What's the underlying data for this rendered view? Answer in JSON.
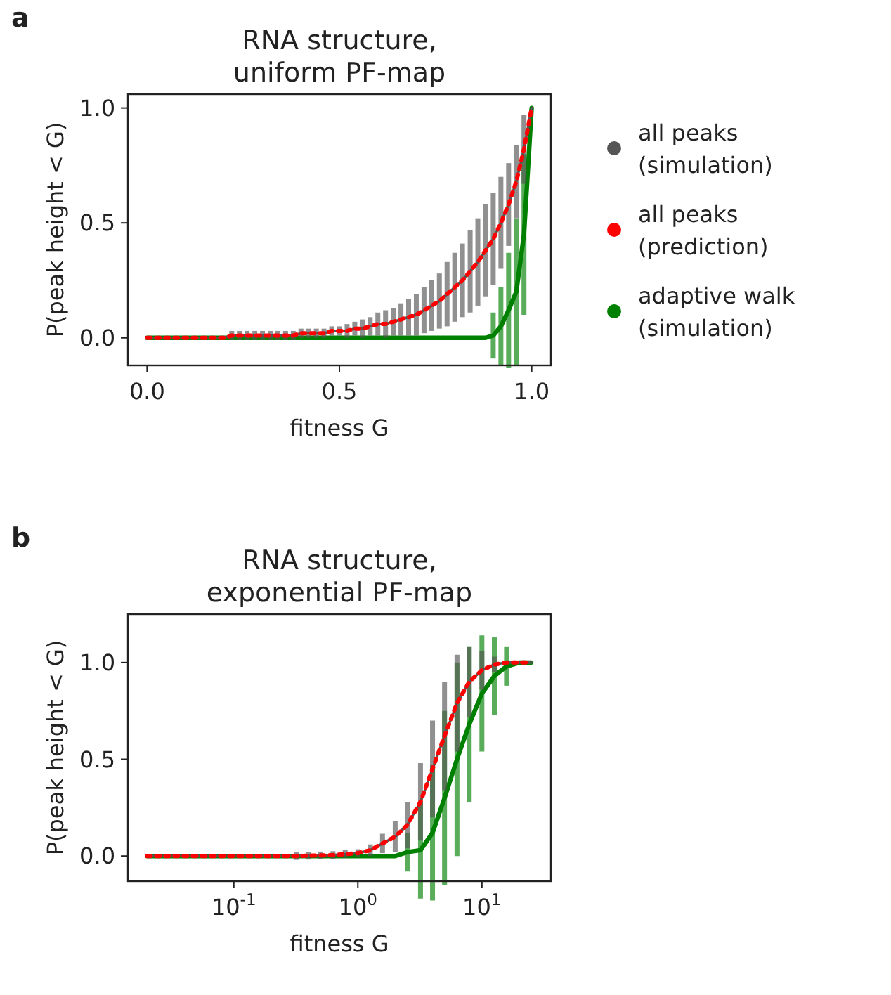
{
  "chart_data": [
    {
      "type": "line",
      "title": "RNA structure,\nuniform PF-map",
      "xlabel": "fitness G",
      "ylabel": "P(peak height < G)",
      "annotations": [
        "a"
      ],
      "legend": "right",
      "grid": false,
      "x": [
        0,
        0.02,
        0.04,
        0.06,
        0.08,
        0.1,
        0.12,
        0.14,
        0.16,
        0.18,
        0.2,
        0.22,
        0.24,
        0.26,
        0.28,
        0.3,
        0.32,
        0.34,
        0.36,
        0.38,
        0.4,
        0.42,
        0.44,
        0.46,
        0.48,
        0.5,
        0.52,
        0.54,
        0.56,
        0.58,
        0.6,
        0.62,
        0.64,
        0.66,
        0.68,
        0.7,
        0.72,
        0.74,
        0.76,
        0.78,
        0.8,
        0.82,
        0.84,
        0.86,
        0.88,
        0.9,
        0.92,
        0.94,
        0.96,
        0.98,
        1.0
      ],
      "xlim": [
        -0.05,
        1.05
      ],
      "ylim": [
        -0.12,
        1.06
      ],
      "xticks": [
        {
          "value": 0,
          "label": "0.0"
        },
        {
          "value": 0.5,
          "label": "0.5"
        },
        {
          "value": 1,
          "label": "1.0"
        }
      ],
      "yticks": [
        {
          "value": 0,
          "label": "0.0"
        },
        {
          "value": 0.5,
          "label": "0.5"
        },
        {
          "value": 1,
          "label": "1.0"
        }
      ],
      "series": [
        {
          "name": "all peaks\n(simulation)",
          "color": "#555555",
          "values": [
            0,
            0,
            0,
            0,
            0,
            0,
            0,
            0,
            0,
            0,
            0,
            0.01,
            0.01,
            0.01,
            0.01,
            0.01,
            0.01,
            0.01,
            0.01,
            0.01,
            0.02,
            0.02,
            0.02,
            0.02,
            0.03,
            0.03,
            0.03,
            0.04,
            0.04,
            0.05,
            0.06,
            0.06,
            0.07,
            0.08,
            0.09,
            0.1,
            0.12,
            0.14,
            0.16,
            0.19,
            0.22,
            0.25,
            0.29,
            0.33,
            0.38,
            0.43,
            0.5,
            0.58,
            0.68,
            0.82,
            1.0
          ],
          "errors": [
            null,
            null,
            null,
            null,
            null,
            null,
            null,
            null,
            null,
            null,
            null,
            0.02,
            0.02,
            0.02,
            0.02,
            0.02,
            0.02,
            0.02,
            0.02,
            0.02,
            0.02,
            0.02,
            0.02,
            0.02,
            0.02,
            0.02,
            0.03,
            0.03,
            0.04,
            0.04,
            0.05,
            0.06,
            0.06,
            0.07,
            0.08,
            0.09,
            0.1,
            0.11,
            0.12,
            0.14,
            0.15,
            0.16,
            0.18,
            0.19,
            0.2,
            0.2,
            0.2,
            0.18,
            0.16,
            0.15,
            null
          ]
        },
        {
          "name": "all peaks\n(prediction)",
          "color": "#ff0000",
          "line_style": "dotted",
          "values": [
            0,
            0,
            0,
            0,
            0,
            0,
            0,
            0,
            0,
            0,
            0,
            0.01,
            0.01,
            0.01,
            0.01,
            0.01,
            0.01,
            0.01,
            0.01,
            0.01,
            0.02,
            0.02,
            0.02,
            0.02,
            0.03,
            0.03,
            0.03,
            0.04,
            0.04,
            0.05,
            0.06,
            0.06,
            0.07,
            0.08,
            0.09,
            0.1,
            0.12,
            0.14,
            0.16,
            0.19,
            0.22,
            0.25,
            0.29,
            0.33,
            0.38,
            0.43,
            0.5,
            0.58,
            0.68,
            0.82,
            1.0
          ]
        },
        {
          "name": "adaptive walk\n(simulation)",
          "color": "#008000",
          "x": [
            0,
            0.1,
            0.2,
            0.3,
            0.4,
            0.5,
            0.6,
            0.7,
            0.8,
            0.88,
            0.9,
            0.92,
            0.94,
            0.96,
            0.98,
            1.0
          ],
          "values": [
            0,
            0,
            0,
            0,
            0,
            0,
            0,
            0,
            0,
            0,
            0.01,
            0.05,
            0.12,
            0.2,
            0.45,
            1.0
          ],
          "errors": [
            null,
            null,
            null,
            null,
            null,
            null,
            null,
            null,
            null,
            null,
            0.1,
            0.17,
            0.25,
            0.32,
            0.35,
            null
          ]
        }
      ]
    },
    {
      "type": "line",
      "title": "RNA structure,\nexponential PF-map",
      "xlabel": "fitness G",
      "ylabel": "P(peak height < G)",
      "annotations": [
        "b"
      ],
      "log": "x",
      "grid": false,
      "x": [
        0.02,
        0.025,
        0.032,
        0.04,
        0.05,
        0.063,
        0.079,
        0.1,
        0.13,
        0.16,
        0.2,
        0.25,
        0.32,
        0.4,
        0.5,
        0.63,
        0.79,
        1.0,
        1.26,
        1.58,
        2.0,
        2.5,
        3.2,
        4.0,
        5.0,
        6.3,
        7.9,
        10,
        12.6,
        15.8,
        20,
        25
      ],
      "xlim": [
        0.014,
        36
      ],
      "ylim": [
        -0.13,
        1.25
      ],
      "xticks": [
        {
          "value": 0.1,
          "label": "10$^{-1}$"
        },
        {
          "value": 1,
          "label": "10$^{0}$"
        },
        {
          "value": 10,
          "label": "10$^{1}$"
        }
      ],
      "yticks": [
        {
          "value": 0,
          "label": "0.0"
        },
        {
          "value": 0.5,
          "label": "0.5"
        },
        {
          "value": 1,
          "label": "1.0"
        }
      ],
      "series": [
        {
          "color": "#555555",
          "values": [
            0,
            0,
            0,
            0,
            0,
            0,
            0,
            0,
            0,
            0,
            0,
            0,
            0,
            0.002,
            0.003,
            0.005,
            0.01,
            0.015,
            0.03,
            0.065,
            0.1,
            0.16,
            0.28,
            0.45,
            0.62,
            0.79,
            0.9,
            0.96,
            0.99,
            1.0,
            1.0,
            1.0
          ],
          "errors": [
            null,
            null,
            null,
            null,
            null,
            null,
            null,
            null,
            null,
            null,
            null,
            null,
            0.02,
            0.02,
            0.02,
            0.02,
            0.02,
            0.02,
            0.03,
            0.05,
            0.08,
            0.12,
            0.2,
            0.25,
            0.28,
            0.25,
            0.18,
            0.1,
            0.04,
            null,
            null,
            null
          ]
        },
        {
          "color": "#ff0000",
          "line_style": "dotted",
          "values": [
            0,
            0,
            0,
            0,
            0,
            0,
            0,
            0,
            0,
            0,
            0,
            0,
            0,
            0.002,
            0.003,
            0.005,
            0.01,
            0.015,
            0.03,
            0.065,
            0.1,
            0.16,
            0.28,
            0.45,
            0.62,
            0.79,
            0.9,
            0.96,
            0.99,
            1.0,
            1.0,
            1.0
          ]
        },
        {
          "color": "#008000",
          "values": [
            0,
            0,
            0,
            0,
            0,
            0,
            0,
            0,
            0,
            0,
            0,
            0,
            0,
            0,
            0,
            0,
            0,
            0,
            0,
            0,
            0,
            0.02,
            0.03,
            0.12,
            0.3,
            0.5,
            0.68,
            0.84,
            0.93,
            0.98,
            1.0,
            1.0
          ],
          "errors": [
            null,
            null,
            null,
            null,
            null,
            null,
            null,
            null,
            null,
            null,
            null,
            null,
            null,
            null,
            null,
            null,
            null,
            null,
            null,
            null,
            null,
            0.1,
            0.25,
            0.35,
            0.45,
            0.5,
            0.4,
            0.3,
            0.2,
            0.1,
            null,
            null
          ]
        }
      ]
    }
  ]
}
